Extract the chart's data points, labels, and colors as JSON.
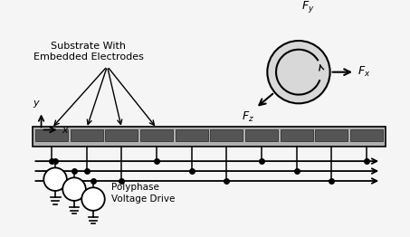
{
  "fig_width": 4.53,
  "fig_height": 2.62,
  "dpi": 100,
  "bg_color": "#f5f5f5",
  "substrate_color": "#b0b0b0",
  "electrode_color": "#555555",
  "num_electrodes": 10,
  "label_substrate": "Substrate With\nEmbedded Electrodes",
  "label_polyphase": "Polyphase\nVoltage Drive",
  "particle_color": "#d8d8d8"
}
